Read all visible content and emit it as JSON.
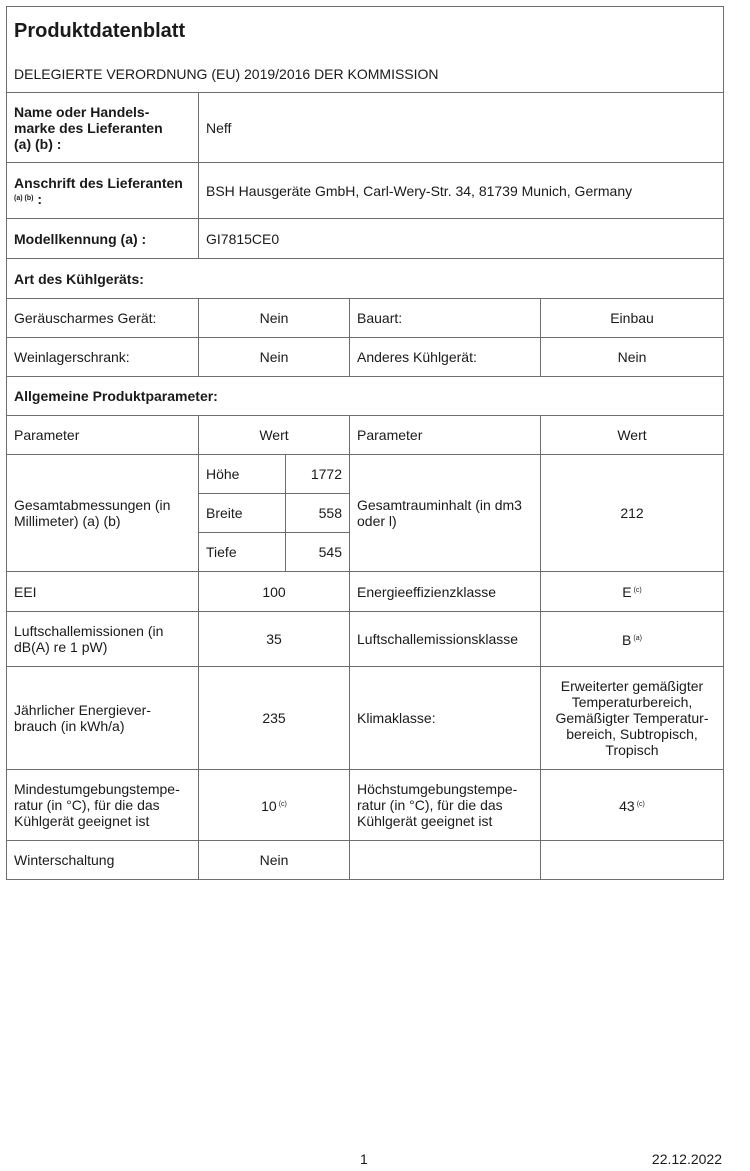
{
  "header": {
    "title": "Produktdatenblatt",
    "subtitle": "DELEGIERTE VERORDNUNG (EU) 2019/2016 DER KOMMISSION"
  },
  "supplier": {
    "name_label": "Name oder Handels-\nmarke des Lieferanten\n(a) (b) :",
    "name_value": "Neff",
    "address_label": "Anschrift des Lieferanten",
    "address_label_sup": "(a) (b)",
    "address_label_colon": ":",
    "address_value": "BSH Hausgeräte GmbH, Carl-Wery-Str. 34, 81739 Munich, Germany",
    "model_label": "Modellkennung (a) :",
    "model_value": "GI7815CE0"
  },
  "type_section": {
    "heading": "Art des Kühlgeräts:",
    "rows": [
      {
        "l1": "Geräuscharmes Gerät:",
        "v1": "Nein",
        "l2": "Bauart:",
        "v2": "Einbau"
      },
      {
        "l1": "Weinlagerschrank:",
        "v1": "Nein",
        "l2": "Anderes Kühlgerät:",
        "v2": "Nein"
      }
    ]
  },
  "params": {
    "heading": "Allgemeine Produktparameter:",
    "col_param": "Parameter",
    "col_value": "Wert",
    "dims_label": "Gesamtabmessungen (in Millimeter) (a) (b)",
    "dims": [
      {
        "label": "Höhe",
        "value": "1772"
      },
      {
        "label": "Breite",
        "value": "558"
      },
      {
        "label": "Tiefe",
        "value": "545"
      }
    ],
    "volume_label": "Gesamtrauminhalt (in dm3 oder l)",
    "volume_value": "212",
    "eei_label": "EEI",
    "eei_value": "100",
    "eclass_label": "Energieeffizienzklasse",
    "eclass_value": "E",
    "eclass_sup": "(c)",
    "noise_label": "Luftschallemissionen (in dB(A) re 1 pW)",
    "noise_value": "35",
    "noise_class_label": "Luftschallemissionsklasse",
    "noise_class_value": "B",
    "noise_class_sup": "(a)",
    "energy_label": "Jährlicher Energiever-\nbrauch (in kWh/a)",
    "energy_value": "235",
    "climate_label": "Klimaklasse:",
    "climate_value": "Erweiterter gemäßigter\nTemperaturbereich,\nGemäßigter Temperatur-\nbereich, Subtropisch,\nTropisch",
    "min_temp_label": "Mindestumgebungstempe-\nratur (in °C), für die das\nKühlgerät geeignet ist",
    "min_temp_value": "10",
    "min_temp_sup": "(c)",
    "max_temp_label": "Höchstumgebungstempe-\nratur (in °C), für die das\nKühlgerät geeignet ist",
    "max_temp_value": "43",
    "max_temp_sup": "(c)",
    "winter_label": "Winterschaltung",
    "winter_value": "Nein"
  },
  "footer": {
    "page": "1",
    "date": "22.12.2022"
  }
}
